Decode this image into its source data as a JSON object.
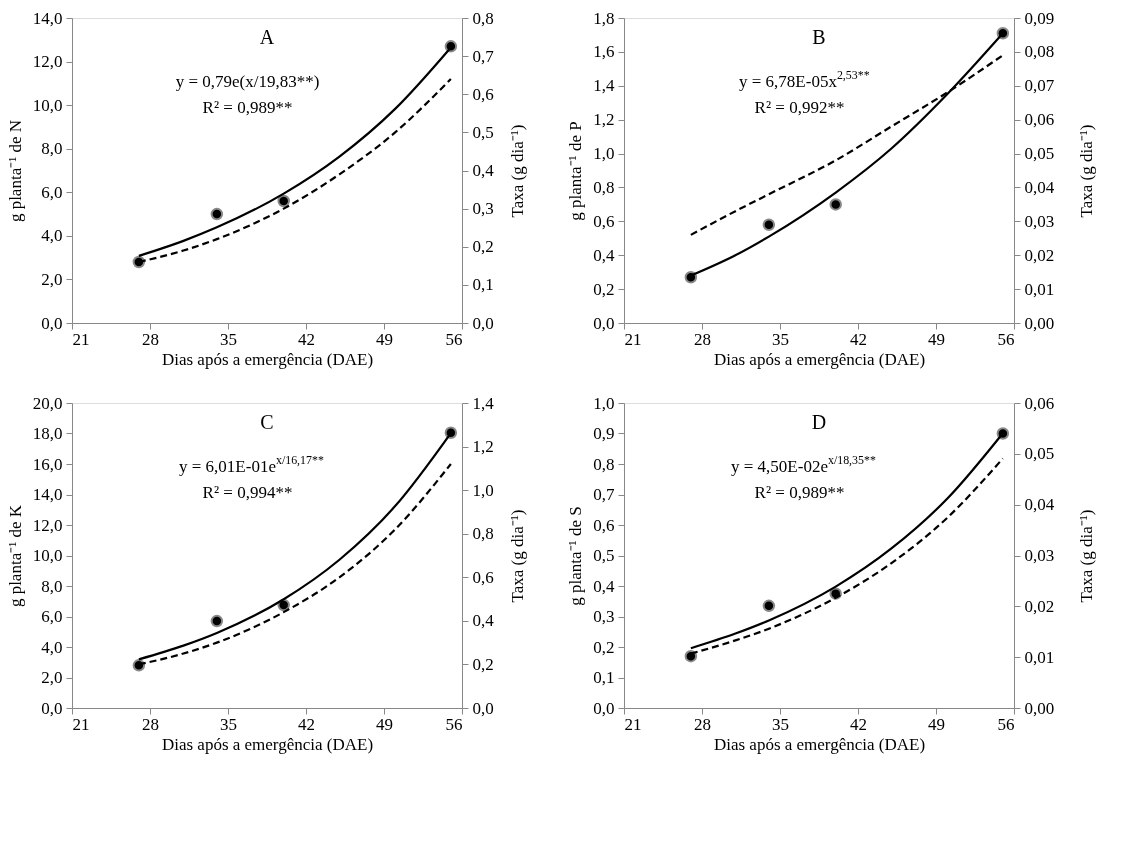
{
  "chart_data": [
    {
      "type": "scatter",
      "title": "A",
      "xlabel": "Dias após a emergência (DAE)",
      "ylabel": "g planta⁻¹ de N",
      "y2label": "Taxa (g dia⁻¹)",
      "marker": "circle",
      "grid": false,
      "annotations": [
        "y = 0,79e(x/19,83**)",
        "R² = 0,989**"
      ],
      "xlim": [
        21,
        56
      ],
      "xticks": [
        21,
        28,
        35,
        42,
        49,
        56
      ],
      "ylim": [
        0,
        14
      ],
      "yticks": [
        {
          "value": 0,
          "label": "0,0"
        },
        {
          "value": 2,
          "label": "2,0"
        },
        {
          "value": 4,
          "label": "4,0"
        },
        {
          "value": 6,
          "label": "6,0"
        },
        {
          "value": 8,
          "label": "8,0"
        },
        {
          "value": 10,
          "label": "10,0"
        },
        {
          "value": 12,
          "label": "12,0"
        },
        {
          "value": 14,
          "label": "14,0"
        }
      ],
      "y2lim": [
        0,
        0.8
      ],
      "y2ticks": [
        {
          "value": 0,
          "label": "0,0"
        },
        {
          "value": 0.1,
          "label": "0,1"
        },
        {
          "value": 0.2,
          "label": "0,2"
        },
        {
          "value": 0.3,
          "label": "0,3"
        },
        {
          "value": 0.4,
          "label": "0,4"
        },
        {
          "value": 0.5,
          "label": "0,5"
        },
        {
          "value": 0.6,
          "label": "0,6"
        },
        {
          "value": 0.7,
          "label": "0,7"
        },
        {
          "value": 0.8,
          "label": "0,8"
        }
      ],
      "series": [
        {
          "color": "#000000",
          "x": [
            27,
            34,
            40,
            55
          ],
          "values": [
            2.8,
            5.0,
            5.6,
            12.7
          ]
        },
        {
          "type": "line",
          "line_style": "solid",
          "marker": "none",
          "color": "#000000",
          "x": [
            27,
            31,
            34,
            40,
            45,
            50,
            55
          ],
          "values": [
            3.08,
            3.77,
            4.39,
            5.94,
            7.64,
            9.83,
            12.65
          ]
        },
        {
          "type": "line",
          "line_style": "dashed",
          "marker": "none",
          "axis": "y2",
          "color": "#000000",
          "x": [
            27,
            31,
            34,
            40,
            45,
            50,
            55
          ],
          "values": [
            0.16,
            0.19,
            0.22,
            0.3,
            0.39,
            0.5,
            0.64
          ]
        }
      ]
    },
    {
      "type": "scatter",
      "title": "B",
      "xlabel": "Dias após a emergência (DAE)",
      "ylabel": "g planta⁻¹ de P",
      "y2label": "Taxa (g dia⁻¹)",
      "marker": "circle",
      "grid": false,
      "annotations": [
        "y = 6,78E-05x$^{2,53**}$",
        "R² = 0,992**"
      ],
      "xlim": [
        21,
        56
      ],
      "xticks": [
        21,
        28,
        35,
        42,
        49,
        56
      ],
      "ylim": [
        0,
        1.8
      ],
      "yticks": [
        {
          "value": 0,
          "label": "0,0"
        },
        {
          "value": 0.2,
          "label": "0,2"
        },
        {
          "value": 0.4,
          "label": "0,4"
        },
        {
          "value": 0.6,
          "label": "0,6"
        },
        {
          "value": 0.8,
          "label": "0,8"
        },
        {
          "value": 1.0,
          "label": "1,0"
        },
        {
          "value": 1.2,
          "label": "1,2"
        },
        {
          "value": 1.4,
          "label": "1,4"
        },
        {
          "value": 1.6,
          "label": "1,6"
        },
        {
          "value": 1.8,
          "label": "1,8"
        }
      ],
      "y2lim": [
        0,
        0.09
      ],
      "y2ticks": [
        {
          "value": 0,
          "label": "0,00"
        },
        {
          "value": 0.01,
          "label": "0,01"
        },
        {
          "value": 0.02,
          "label": "0,02"
        },
        {
          "value": 0.03,
          "label": "0,03"
        },
        {
          "value": 0.04,
          "label": "0,04"
        },
        {
          "value": 0.05,
          "label": "0,05"
        },
        {
          "value": 0.06,
          "label": "0,06"
        },
        {
          "value": 0.07,
          "label": "0,07"
        },
        {
          "value": 0.08,
          "label": "0,08"
        },
        {
          "value": 0.09,
          "label": "0,09"
        }
      ],
      "series": [
        {
          "color": "#000000",
          "x": [
            27,
            34,
            40,
            55
          ],
          "values": [
            0.27,
            0.58,
            0.7,
            1.71
          ]
        },
        {
          "type": "line",
          "line_style": "solid",
          "marker": "none",
          "color": "#000000",
          "x": [
            27,
            31,
            34,
            40,
            45,
            50,
            55
          ],
          "values": [
            0.28,
            0.4,
            0.51,
            0.77,
            1.03,
            1.35,
            1.71
          ]
        },
        {
          "type": "line",
          "line_style": "dashed",
          "marker": "none",
          "axis": "y2",
          "color": "#000000",
          "x": [
            27,
            31,
            34,
            40,
            45,
            50,
            55
          ],
          "values": [
            0.026,
            0.033,
            0.038,
            0.048,
            0.058,
            0.068,
            0.079
          ]
        }
      ]
    },
    {
      "type": "scatter",
      "title": "C",
      "xlabel": "Dias após a emergência (DAE)",
      "ylabel": "g planta⁻¹ de K",
      "y2label": "Taxa (g dia⁻¹)",
      "marker": "circle",
      "grid": false,
      "annotations": [
        "y = 6,01E-01e$^{x/16,17**}$",
        "R² = 0,994**"
      ],
      "xlim": [
        21,
        56
      ],
      "xticks": [
        21,
        28,
        35,
        42,
        49,
        56
      ],
      "ylim": [
        0,
        20
      ],
      "yticks": [
        {
          "value": 0,
          "label": "0,0"
        },
        {
          "value": 2,
          "label": "2,0"
        },
        {
          "value": 4,
          "label": "4,0"
        },
        {
          "value": 6,
          "label": "6,0"
        },
        {
          "value": 8,
          "label": "8,0"
        },
        {
          "value": 10,
          "label": "10,0"
        },
        {
          "value": 12,
          "label": "12,0"
        },
        {
          "value": 14,
          "label": "14,0"
        },
        {
          "value": 16,
          "label": "16,0"
        },
        {
          "value": 18,
          "label": "18,0"
        },
        {
          "value": 20,
          "label": "20,0"
        }
      ],
      "y2lim": [
        0,
        1.4
      ],
      "y2ticks": [
        {
          "value": 0,
          "label": "0,0"
        },
        {
          "value": 0.2,
          "label": "0,2"
        },
        {
          "value": 0.4,
          "label": "0,4"
        },
        {
          "value": 0.6,
          "label": "0,6"
        },
        {
          "value": 0.8,
          "label": "0,8"
        },
        {
          "value": 1.0,
          "label": "1,0"
        },
        {
          "value": 1.2,
          "label": "1,2"
        },
        {
          "value": 1.4,
          "label": "1,4"
        }
      ],
      "series": [
        {
          "color": "#000000",
          "x": [
            27,
            34,
            40,
            55
          ],
          "values": [
            2.8,
            5.7,
            6.75,
            18.05
          ]
        },
        {
          "type": "line",
          "line_style": "solid",
          "marker": "none",
          "color": "#000000",
          "x": [
            27,
            31,
            34,
            40,
            45,
            50,
            55
          ],
          "values": [
            3.19,
            4.09,
            4.92,
            7.13,
            9.72,
            13.24,
            18.03
          ]
        },
        {
          "type": "line",
          "line_style": "dashed",
          "marker": "none",
          "axis": "y2",
          "color": "#000000",
          "x": [
            27,
            31,
            34,
            40,
            45,
            50,
            55
          ],
          "values": [
            0.2,
            0.25,
            0.3,
            0.44,
            0.6,
            0.82,
            1.12
          ]
        }
      ]
    },
    {
      "type": "scatter",
      "title": "D",
      "xlabel": "Dias após a emergência (DAE)",
      "ylabel": "g planta⁻¹ de S",
      "y2label": "Taxa (g dia⁻¹)",
      "marker": "circle",
      "grid": false,
      "annotations": [
        "y = 4,50E-02e$^{x/18,35**}$",
        "R² = 0,989**"
      ],
      "xlim": [
        21,
        56
      ],
      "xticks": [
        21,
        28,
        35,
        42,
        49,
        56
      ],
      "ylim": [
        0,
        1.0
      ],
      "yticks": [
        {
          "value": 0,
          "label": "0,0"
        },
        {
          "value": 0.1,
          "label": "0,1"
        },
        {
          "value": 0.2,
          "label": "0,2"
        },
        {
          "value": 0.3,
          "label": "0,3"
        },
        {
          "value": 0.4,
          "label": "0,4"
        },
        {
          "value": 0.5,
          "label": "0,5"
        },
        {
          "value": 0.6,
          "label": "0,6"
        },
        {
          "value": 0.7,
          "label": "0,7"
        },
        {
          "value": 0.8,
          "label": "0,8"
        },
        {
          "value": 0.9,
          "label": "0,9"
        },
        {
          "value": 1.0,
          "label": "1,0"
        }
      ],
      "y2lim": [
        0,
        0.06
      ],
      "y2ticks": [
        {
          "value": 0,
          "label": "0,00"
        },
        {
          "value": 0.01,
          "label": "0,01"
        },
        {
          "value": 0.02,
          "label": "0,02"
        },
        {
          "value": 0.03,
          "label": "0,03"
        },
        {
          "value": 0.04,
          "label": "0,04"
        },
        {
          "value": 0.05,
          "label": "0,05"
        },
        {
          "value": 0.06,
          "label": "0,06"
        }
      ],
      "series": [
        {
          "color": "#000000",
          "x": [
            27,
            34,
            40,
            55
          ],
          "values": [
            0.17,
            0.335,
            0.375,
            0.9
          ]
        },
        {
          "type": "line",
          "line_style": "solid",
          "marker": "none",
          "color": "#000000",
          "x": [
            27,
            31,
            34,
            40,
            45,
            50,
            55
          ],
          "values": [
            0.196,
            0.244,
            0.287,
            0.398,
            0.523,
            0.686,
            0.901
          ]
        },
        {
          "type": "line",
          "line_style": "dashed",
          "marker": "none",
          "axis": "y2",
          "color": "#000000",
          "x": [
            27,
            31,
            34,
            40,
            45,
            50,
            55
          ],
          "values": [
            0.0107,
            0.0133,
            0.0156,
            0.0217,
            0.0285,
            0.0374,
            0.0491
          ]
        }
      ]
    }
  ]
}
